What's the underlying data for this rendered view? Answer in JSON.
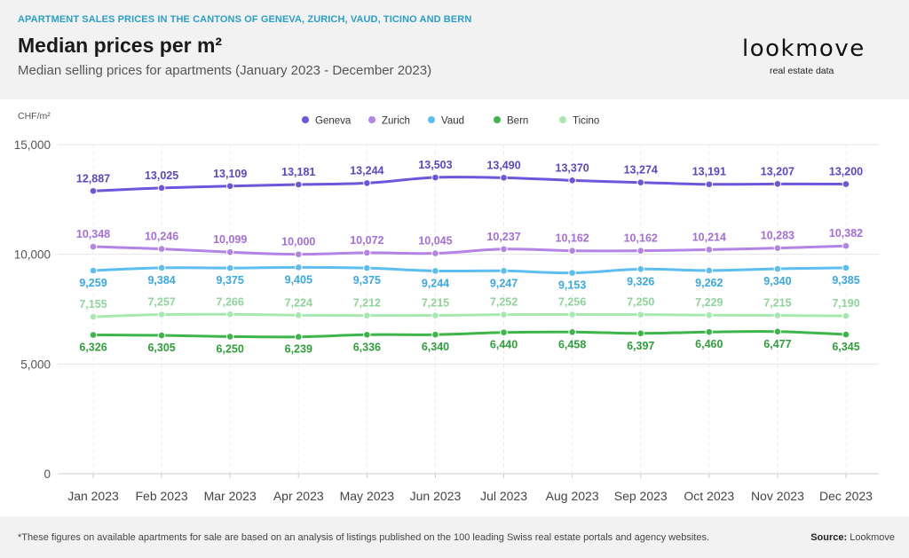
{
  "header": {
    "kicker": "APARTMENT SALES PRICES IN THE CANTONS OF GENEVA, ZURICH, VAUD, TICINO AND BERN",
    "title": "Median prices per m²",
    "subtitle": "Median selling prices for apartments (January 2023 - December 2023)"
  },
  "logo": {
    "wordmark": "lookmove",
    "tagline": "real estate data"
  },
  "footer": {
    "footnote": "*These figures on available apartments for sale are based on an analysis of listings published on the 100 leading Swiss real estate portals and agency websites.",
    "source_label": "Source:",
    "source_value": "Lookmove"
  },
  "chart_data": {
    "type": "line",
    "ylabel": "CHF/m²",
    "ylim": [
      0,
      15000
    ],
    "yticks": [
      0,
      5000,
      10000,
      15000
    ],
    "ytick_labels": [
      "0",
      "5,000",
      "10,000",
      "15,000"
    ],
    "grid": true,
    "legend_position": "top",
    "categories": [
      "Jan 2023",
      "Feb 2023",
      "Mar 2023",
      "Apr 2023",
      "May 2023",
      "Jun 2023",
      "Jul 2023",
      "Aug 2023",
      "Sep 2023",
      "Oct 2023",
      "Nov 2023",
      "Dec 2023"
    ],
    "series": [
      {
        "name": "Geneva",
        "color": "#6f55dc",
        "label_color": "#5a48c4",
        "label_position": "above",
        "values": [
          12887,
          13025,
          13109,
          13181,
          13244,
          13503,
          13490,
          13370,
          13274,
          13191,
          13207,
          13200
        ]
      },
      {
        "name": "Zurich",
        "color": "#b383e6",
        "label_color": "#a36fdb",
        "label_position": "above",
        "values": [
          10348,
          10246,
          10099,
          10000,
          10072,
          10045,
          10237,
          10162,
          10162,
          10214,
          10283,
          10382
        ]
      },
      {
        "name": "Vaud",
        "color": "#5cbdf0",
        "label_color": "#3aa8e3",
        "label_position": "below",
        "values": [
          9259,
          9384,
          9375,
          9405,
          9375,
          9244,
          9247,
          9153,
          9326,
          9262,
          9340,
          9385
        ]
      },
      {
        "name": "Bern",
        "color": "#3db54a",
        "label_color": "#2e9f3a",
        "label_position": "below",
        "values": [
          6326,
          6305,
          6250,
          6239,
          6336,
          6340,
          6440,
          6458,
          6397,
          6460,
          6477,
          6345
        ]
      },
      {
        "name": "Ticino",
        "color": "#a7e8b0",
        "label_color": "#8fd49a",
        "label_position": "above",
        "values": [
          7155,
          7257,
          7266,
          7224,
          7212,
          7215,
          7252,
          7256,
          7250,
          7229,
          7215,
          7190
        ]
      }
    ]
  }
}
